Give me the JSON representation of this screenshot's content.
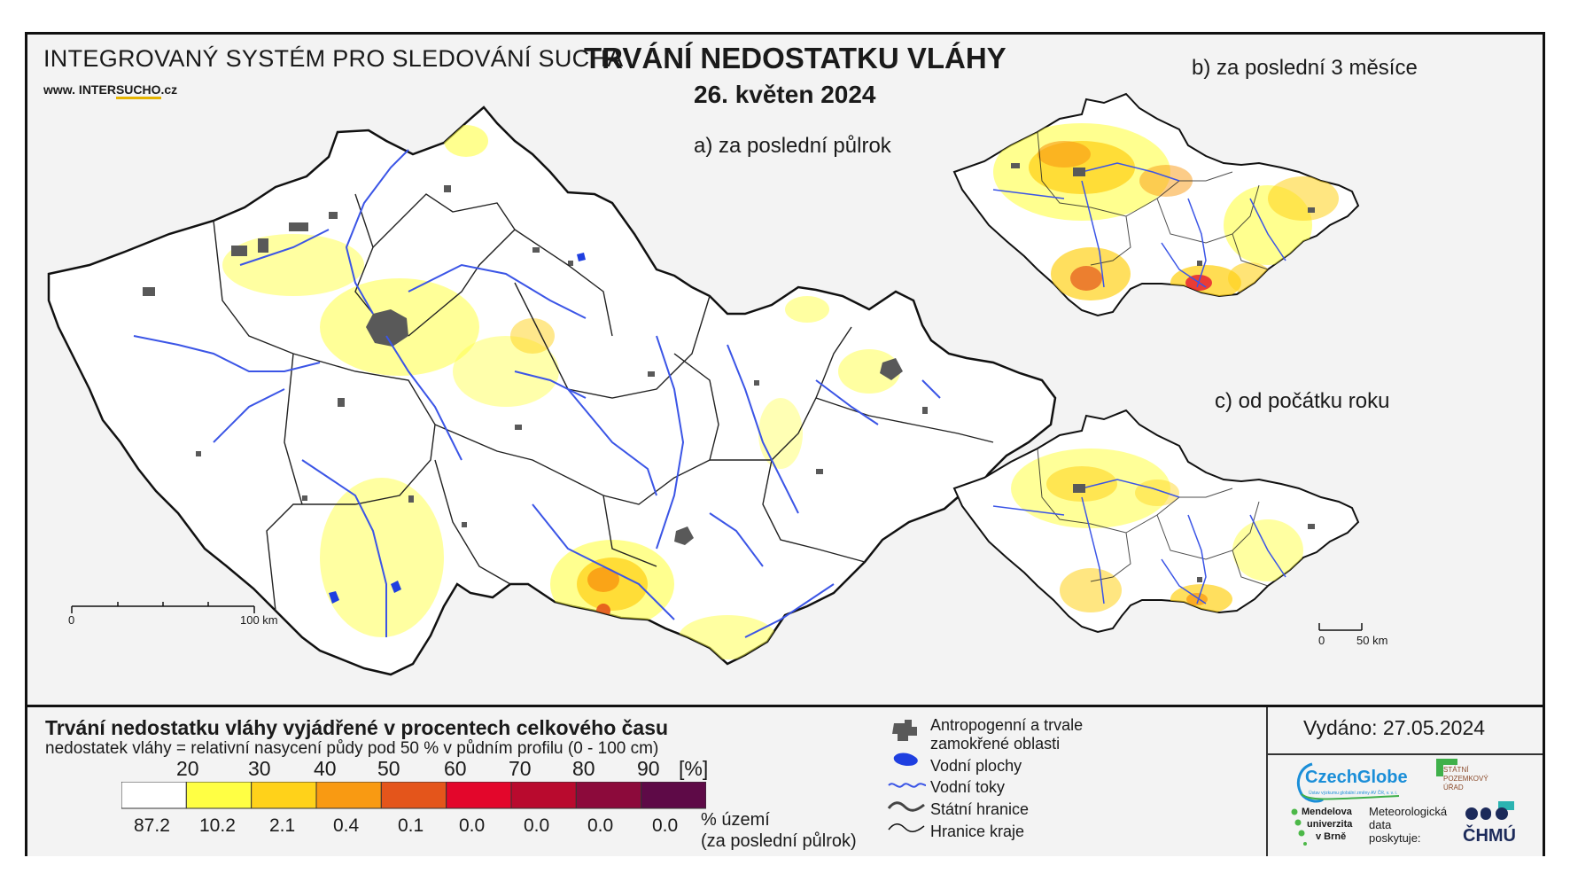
{
  "header": {
    "system_title": "INTEGROVANÝ SYSTÉM PRO SLEDOVÁNÍ SUCHA",
    "website_prefix": "www. INTER",
    "website_brand": "SUCHO",
    "website_suffix": ".cz",
    "main_title": "TRVÁNÍ NEDOSTATKU VLÁHY",
    "date": "26. květen 2024"
  },
  "maps": {
    "a_label": "a) za poslední půlrok",
    "b_label": "b) za poslední 3 měsíce",
    "c_label": "c) od počátku roku",
    "main_scale": {
      "start": "0",
      "end": "100 km"
    },
    "small_scale": {
      "start": "0",
      "end": "50 km"
    }
  },
  "legend": {
    "title": "Trvání nedostatku vláhy vyjádřené v procentech celkového času",
    "subtitle": "nedostatek vláhy = relativní nasycení půdy pod 50 % v půdním profilu (0 - 100 cm)",
    "unit": "[%]",
    "thresholds": [
      "20",
      "30",
      "40",
      "50",
      "60",
      "70",
      "80",
      "90"
    ],
    "bins": [
      {
        "color": "#ffffff",
        "share": "87.2"
      },
      {
        "color": "#ffff44",
        "share": "10.2"
      },
      {
        "color": "#ffd21a",
        "share": "2.1"
      },
      {
        "color": "#f99a12",
        "share": "0.4"
      },
      {
        "color": "#e4551b",
        "share": "0.1"
      },
      {
        "color": "#e3062b",
        "share": "0.0"
      },
      {
        "color": "#b90a2e",
        "share": "0.0"
      },
      {
        "color": "#8c0a3b",
        "share": "0.0"
      },
      {
        "color": "#5e0a47",
        "share": "0.0"
      }
    ],
    "share_label_1": "% území",
    "share_label_2": "(za poslední půlrok)",
    "symbols": {
      "urban_1": "Antropogenní a trvale",
      "urban_2": "zamokřené oblasti",
      "water_bodies": "Vodní plochy",
      "rivers": "Vodní toky",
      "state_border": "Státní hranice",
      "region_border": "Hranice kraje"
    }
  },
  "issued": "Vydáno: 27.05.2024",
  "credits": {
    "czechglobe": "CzechGlobe",
    "czechglobe_sub": "Ústav výzkumu globální změny AV ČR, v. v. i.",
    "mendel_1": "Mendelova",
    "mendel_2": "univerzita",
    "mendel_3": "v Brně",
    "spu_1": "STÁTNÍ",
    "spu_2": "POZEMKOVÝ",
    "spu_3": "ÚŘAD",
    "meteo_1": "Meteorologická",
    "meteo_2": "data",
    "meteo_3": "poskytuje:",
    "chmu": "ČHMÚ"
  },
  "colors": {
    "border": "#111111",
    "river": "#3b55e6",
    "urban": "#595959",
    "background": "#f3f3f3"
  }
}
